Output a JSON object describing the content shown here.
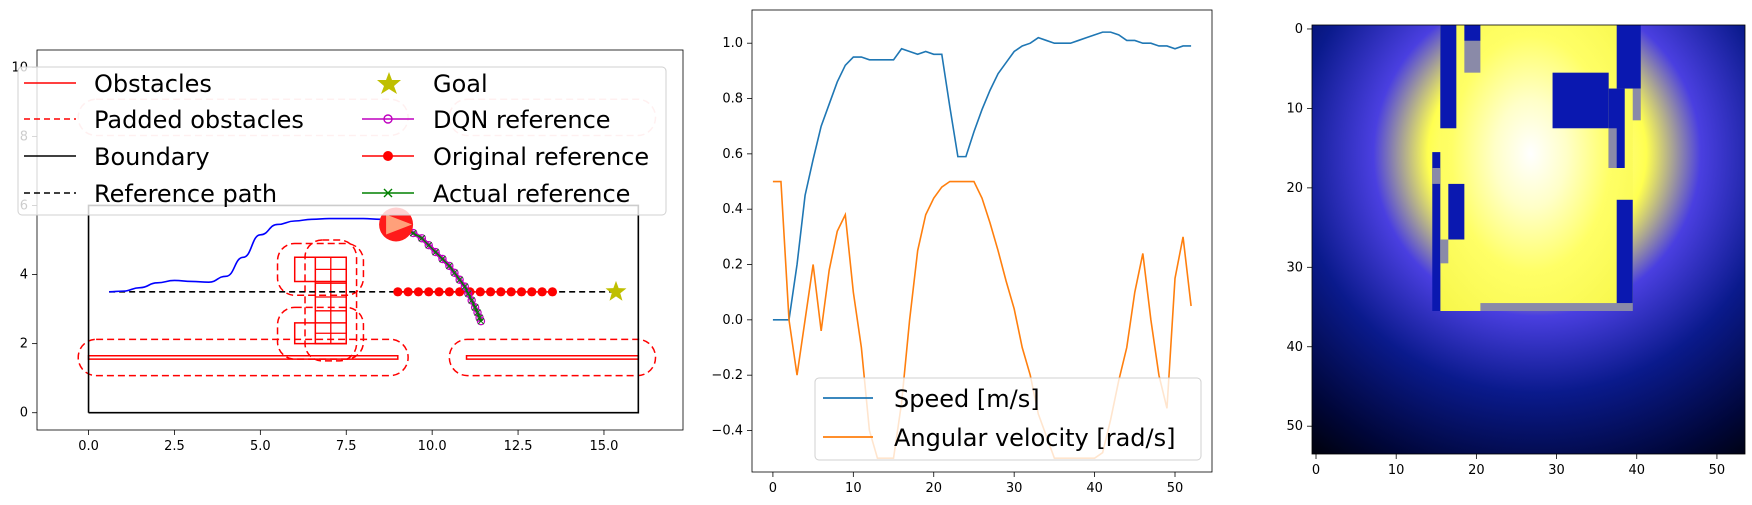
{
  "chart_data": [
    {
      "type": "line",
      "title": "",
      "xlabel": "",
      "ylabel": "",
      "xlim": [
        -1.5,
        17.3
      ],
      "ylim": [
        -0.5,
        10.5
      ],
      "xticks": [
        "0.0",
        "2.5",
        "5.0",
        "7.5",
        "10.0",
        "12.5",
        "15.0"
      ],
      "yticks": [
        "0",
        "2",
        "4",
        "6",
        "8",
        "10"
      ],
      "legend": {
        "placement": "top-left",
        "entries": [
          "Obstacles",
          "Padded obstacles",
          "Boundary",
          "Reference path",
          "Goal",
          "DQN reference",
          "Original reference",
          "Actual reference"
        ]
      },
      "boundary": {
        "x": [
          0,
          16,
          16,
          0,
          0
        ],
        "y": [
          0,
          0,
          6,
          6,
          0
        ]
      },
      "obstacles": [
        {
          "name": "wall-left",
          "x": [
            0,
            9,
            9,
            0
          ],
          "y": [
            1.55,
            1.55,
            1.65,
            1.65
          ]
        },
        {
          "name": "wall-right",
          "x": [
            11,
            16,
            16,
            11
          ],
          "y": [
            1.55,
            1.55,
            1.65,
            1.65
          ]
        },
        {
          "name": "block-upper",
          "x": [
            6.0,
            7.5,
            7.5,
            6.0
          ],
          "y": [
            3.8,
            3.8,
            4.5,
            4.5
          ]
        },
        {
          "name": "block-lower",
          "x": [
            6.0,
            7.5,
            7.5,
            6.0
          ],
          "y": [
            2.0,
            2.0,
            2.6,
            2.6
          ]
        },
        {
          "name": "bar-vertical",
          "x": [
            6.6,
            7.5,
            7.5,
            6.6
          ],
          "y": [
            2.0,
            2.0,
            4.5,
            4.5
          ]
        }
      ],
      "padded_obstacles": [
        {
          "name": "pad-wall-left",
          "cx": 4.5,
          "cy": 1.6,
          "w": 9.6,
          "h": 1.05,
          "r": 0.52
        },
        {
          "name": "pad-wall-right",
          "cx": 13.5,
          "cy": 1.6,
          "w": 6.0,
          "h": 1.05,
          "r": 0.52
        },
        {
          "name": "pad-block-upper",
          "cx": 6.75,
          "cy": 4.15,
          "w": 2.5,
          "h": 1.5,
          "r": 0.5
        },
        {
          "name": "pad-block-lower",
          "cx": 6.75,
          "cy": 2.3,
          "w": 2.5,
          "h": 1.5,
          "r": 0.5
        },
        {
          "name": "pad-bar",
          "cx": 7.05,
          "cy": 3.25,
          "w": 1.5,
          "h": 3.5,
          "r": 0.5
        },
        {
          "name": "pad-top-left",
          "cx": 4.5,
          "cy": 8.55,
          "w": 9.6,
          "h": 1.05,
          "r": 0.52
        },
        {
          "name": "pad-top-right",
          "cx": 13.5,
          "cy": 8.55,
          "w": 6.0,
          "h": 1.05,
          "r": 0.52
        }
      ],
      "reference_path": {
        "x": [
          0.6,
          15.3
        ],
        "y": [
          3.5,
          3.5
        ]
      },
      "trajectory": {
        "x": [
          0.6,
          1.0,
          1.5,
          2.0,
          2.5,
          3.0,
          3.5,
          4.0,
          4.5,
          5.0,
          5.5,
          6.0,
          6.5,
          7.0,
          7.5,
          8.0,
          8.5,
          8.9
        ],
        "y": [
          3.5,
          3.52,
          3.62,
          3.76,
          3.83,
          3.8,
          3.78,
          3.95,
          4.5,
          5.15,
          5.45,
          5.55,
          5.6,
          5.62,
          5.62,
          5.62,
          5.6,
          5.55
        ]
      },
      "goal": {
        "x": 15.35,
        "y": 3.5
      },
      "robot": {
        "x": 8.95,
        "y": 5.45
      },
      "original_reference": {
        "x": [
          9.0,
          9.3,
          9.6,
          9.9,
          10.2,
          10.5,
          10.8,
          11.1,
          11.4,
          11.7,
          12.0,
          12.3,
          12.6,
          12.9,
          13.2,
          13.5
        ],
        "y": [
          3.5,
          3.5,
          3.5,
          3.5,
          3.5,
          3.5,
          3.5,
          3.5,
          3.5,
          3.5,
          3.5,
          3.5,
          3.5,
          3.5,
          3.5,
          3.5
        ]
      },
      "dqn_reference": {
        "x": [
          9.2,
          9.45,
          9.7,
          9.9,
          10.1,
          10.3,
          10.5,
          10.65,
          10.8,
          10.95,
          11.05,
          11.15,
          11.25,
          11.32,
          11.38,
          11.42
        ],
        "y": [
          5.35,
          5.2,
          5.05,
          4.85,
          4.65,
          4.45,
          4.25,
          4.05,
          3.85,
          3.65,
          3.45,
          3.25,
          3.05,
          2.9,
          2.75,
          2.65
        ]
      },
      "actual_reference": {
        "x": [
          9.2,
          9.45,
          9.7,
          9.9,
          10.1,
          10.3,
          10.5,
          10.65,
          10.8,
          10.95,
          11.05,
          11.15,
          11.25,
          11.32,
          11.38,
          11.42
        ],
        "y": [
          5.35,
          5.2,
          5.05,
          4.85,
          4.65,
          4.45,
          4.25,
          4.05,
          3.85,
          3.65,
          3.45,
          3.25,
          3.05,
          2.9,
          2.75,
          2.65
        ]
      },
      "colors": {
        "obstacle": "#ff0000",
        "boundary": "#000000",
        "trajectory": "#0000ff",
        "goal": "#bfbf00",
        "dqn": "#bf00bf",
        "original": "#ff0000",
        "actual": "#008000"
      }
    },
    {
      "type": "line",
      "title": "",
      "xlabel": "",
      "ylabel": "",
      "xlim": [
        -2.6,
        54.6
      ],
      "ylim": [
        -0.55,
        1.12
      ],
      "xticks": [
        "0",
        "10",
        "20",
        "30",
        "40",
        "50"
      ],
      "yticks": [
        "−0.4",
        "−0.2",
        "0.0",
        "0.2",
        "0.4",
        "0.6",
        "0.8",
        "1.0"
      ],
      "legend": {
        "placement": "lower-center",
        "entries": [
          "Speed [m/s]",
          "Angular velocity [rad/s]"
        ]
      },
      "x": [
        0,
        1,
        2,
        3,
        4,
        5,
        6,
        7,
        8,
        9,
        10,
        11,
        12,
        13,
        14,
        15,
        16,
        17,
        18,
        19,
        20,
        21,
        22,
        23,
        24,
        25,
        26,
        27,
        28,
        29,
        30,
        31,
        32,
        33,
        34,
        35,
        36,
        37,
        38,
        39,
        40,
        41,
        42,
        43,
        44,
        45,
        46,
        47,
        48,
        49,
        50,
        51,
        52
      ],
      "series": [
        {
          "name": "Speed [m/s]",
          "color": "#1f77b4",
          "values": [
            0,
            0,
            0,
            0.2,
            0.45,
            0.58,
            0.7,
            0.78,
            0.86,
            0.92,
            0.95,
            0.95,
            0.94,
            0.94,
            0.94,
            0.94,
            0.98,
            0.97,
            0.96,
            0.97,
            0.96,
            0.96,
            0.77,
            0.59,
            0.59,
            0.68,
            0.76,
            0.83,
            0.89,
            0.93,
            0.97,
            0.99,
            1.0,
            1.02,
            1.01,
            1.0,
            1.0,
            1.0,
            1.01,
            1.02,
            1.03,
            1.04,
            1.04,
            1.03,
            1.01,
            1.01,
            1.0,
            1.0,
            0.99,
            0.99,
            0.98,
            0.99,
            0.99
          ]
        },
        {
          "name": "Angular velocity [rad/s]",
          "color": "#ff7f0e",
          "values": [
            0.5,
            0.5,
            0,
            -0.2,
            0,
            0.2,
            -0.04,
            0.18,
            0.32,
            0.38,
            0.1,
            -0.1,
            -0.4,
            -0.5,
            -0.5,
            -0.5,
            -0.3,
            0,
            0.25,
            0.38,
            0.44,
            0.48,
            0.5,
            0.5,
            0.5,
            0.5,
            0.44,
            0.35,
            0.25,
            0.14,
            0.04,
            -0.1,
            -0.2,
            -0.34,
            -0.42,
            -0.5,
            -0.5,
            -0.5,
            -0.5,
            -0.5,
            -0.5,
            -0.48,
            -0.36,
            -0.22,
            -0.1,
            0.1,
            0.24,
            0,
            -0.2,
            -0.32,
            0.15,
            0.3,
            0.05
          ]
        }
      ]
    },
    {
      "type": "heatmap",
      "title": "",
      "xlabel": "",
      "ylabel": "",
      "xlim": [
        0,
        54
      ],
      "ylim": [
        54,
        0
      ],
      "xticks": [
        "0",
        "10",
        "20",
        "30",
        "40",
        "50"
      ],
      "yticks": [
        "0",
        "10",
        "20",
        "30",
        "40",
        "50"
      ],
      "colormap": "gnuplot2-like (black → dark blue → yellow → white)",
      "free_space_value": 1.0,
      "obstacle_value": 0.25,
      "glow_center": {
        "x": 27,
        "y": 16
      },
      "free_region": {
        "x": [
          16,
          40
        ],
        "y": [
          0,
          36
        ]
      },
      "obstacle_blocks": [
        {
          "x": [
            15,
            16
          ],
          "y": [
            16,
            36
          ]
        },
        {
          "x": [
            16,
            18
          ],
          "y": [
            0,
            13
          ]
        },
        {
          "x": [
            19,
            21
          ],
          "y": [
            0,
            2
          ]
        },
        {
          "x": [
            38,
            41
          ],
          "y": [
            0,
            8
          ]
        },
        {
          "x": [
            17,
            19
          ],
          "y": [
            20,
            27
          ]
        },
        {
          "x": [
            30,
            37
          ],
          "y": [
            6,
            13
          ]
        },
        {
          "x": [
            37,
            39
          ],
          "y": [
            8,
            18
          ]
        },
        {
          "x": [
            38,
            40
          ],
          "y": [
            22,
            36
          ]
        }
      ]
    }
  ]
}
